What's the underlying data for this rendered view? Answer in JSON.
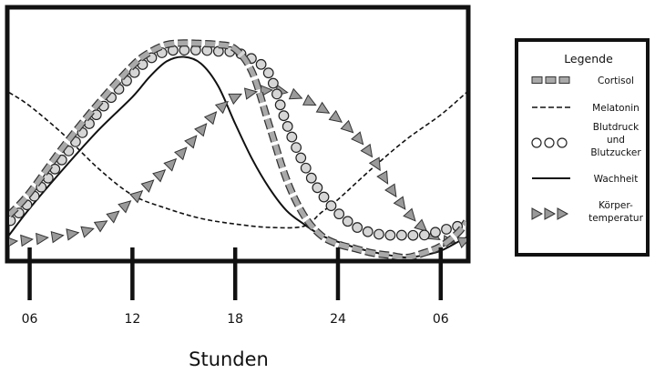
{
  "chart_data": {
    "type": "line",
    "xlabel": "Stunden",
    "x_ticks": [
      "06",
      "12",
      "18",
      "24",
      "06"
    ],
    "x_tick_hours": [
      6,
      12,
      18,
      24,
      30
    ],
    "xlim": [
      4.8,
      31.5
    ],
    "ylim": [
      0,
      1
    ],
    "grid": false,
    "legend": {
      "title": "Legende",
      "placement": "right",
      "entries": [
        {
          "key": "cortisol",
          "lines": [
            "Cortisol"
          ],
          "style": "gray-dashed-boxes"
        },
        {
          "key": "melatonin",
          "lines": [
            "Melatonin"
          ],
          "style": "dashed"
        },
        {
          "key": "blutdruck",
          "lines": [
            "Blutdruck",
            "und",
            "Blutzucker"
          ],
          "style": "circles"
        },
        {
          "key": "wachheit",
          "lines": [
            "Wachheit"
          ],
          "style": "solid"
        },
        {
          "key": "temperatur",
          "lines": [
            "Körper-",
            "temperatur"
          ],
          "style": "triangles"
        }
      ]
    },
    "series": [
      {
        "key": "cortisol",
        "name": "Cortisol",
        "x": [
          4.8,
          6,
          8,
          10,
          12,
          13,
          14,
          15,
          16,
          17,
          18,
          19,
          20,
          21,
          22,
          23,
          24,
          25,
          26,
          27,
          28,
          29,
          30,
          31,
          31.5
        ],
        "y": [
          0.19,
          0.29,
          0.5,
          0.69,
          0.86,
          0.92,
          0.955,
          0.962,
          0.96,
          0.955,
          0.935,
          0.83,
          0.59,
          0.35,
          0.19,
          0.1,
          0.06,
          0.04,
          0.02,
          0.01,
          0.0,
          0.02,
          0.05,
          0.11,
          0.16
        ]
      },
      {
        "key": "melatonin",
        "name": "Melatonin",
        "x": [
          4.8,
          6,
          8,
          10,
          12,
          14,
          16,
          18,
          20,
          22,
          23,
          24,
          26,
          28,
          30,
          31.5
        ],
        "y": [
          0.74,
          0.68,
          0.55,
          0.4,
          0.28,
          0.22,
          0.175,
          0.15,
          0.135,
          0.14,
          0.2,
          0.26,
          0.4,
          0.53,
          0.64,
          0.74
        ]
      },
      {
        "key": "blutdruck",
        "name": "Blutdruck und Blutzucker",
        "x": [
          4.8,
          6,
          8,
          10,
          12,
          13,
          14,
          15,
          16,
          17,
          18,
          19,
          20,
          21,
          22,
          23,
          24,
          25,
          26,
          27,
          28,
          29,
          30,
          31,
          31.5
        ],
        "y": [
          0.16,
          0.25,
          0.45,
          0.65,
          0.82,
          0.89,
          0.925,
          0.93,
          0.93,
          0.925,
          0.92,
          0.89,
          0.82,
          0.6,
          0.42,
          0.29,
          0.2,
          0.14,
          0.11,
          0.1,
          0.1,
          0.1,
          0.12,
          0.14,
          0.15
        ]
      },
      {
        "key": "wachheit",
        "name": "Wachheit",
        "x": [
          4.8,
          6,
          8,
          10,
          12,
          13,
          14,
          15,
          16,
          17,
          18,
          19,
          20,
          21,
          22,
          23,
          24,
          25,
          26,
          27,
          28,
          29,
          30,
          31,
          31.5
        ],
        "y": [
          0.1,
          0.22,
          0.4,
          0.57,
          0.72,
          0.81,
          0.88,
          0.9,
          0.87,
          0.77,
          0.6,
          0.44,
          0.31,
          0.21,
          0.15,
          0.1,
          0.07,
          0.045,
          0.025,
          0.01,
          0.0,
          0.01,
          0.03,
          0.07,
          0.09
        ]
      },
      {
        "key": "temperatur",
        "name": "Körpertemperatur",
        "x": [
          4.8,
          6,
          8,
          10,
          12,
          13,
          14,
          15,
          16,
          17,
          18,
          19,
          20,
          21,
          22,
          23,
          24,
          25,
          26,
          27,
          28,
          29,
          30,
          31,
          31.5
        ],
        "y": [
          0.07,
          0.08,
          0.1,
          0.14,
          0.26,
          0.33,
          0.4,
          0.48,
          0.57,
          0.66,
          0.72,
          0.74,
          0.75,
          0.74,
          0.71,
          0.67,
          0.62,
          0.55,
          0.45,
          0.32,
          0.21,
          0.13,
          0.08,
          0.07,
          0.08
        ]
      }
    ]
  }
}
